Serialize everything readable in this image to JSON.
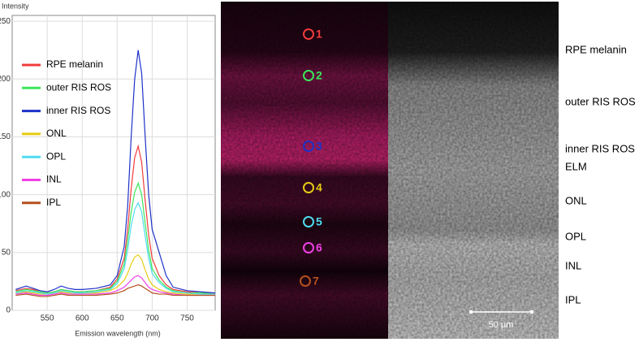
{
  "chart_data": {
    "type": "line",
    "ylabel": "Intensity",
    "xlabel": "Emission wavelength (nm)",
    "x": [
      505,
      520,
      530,
      540,
      550,
      560,
      570,
      580,
      590,
      600,
      620,
      640,
      650,
      660,
      665,
      670,
      675,
      680,
      685,
      690,
      695,
      700,
      710,
      720,
      730,
      750,
      770,
      790
    ],
    "series": [
      {
        "name": "RPE melanin",
        "color": "#f03c3c",
        "values": [
          17,
          19,
          18,
          16,
          15,
          16,
          18,
          17,
          16,
          16,
          17,
          20,
          27,
          45,
          70,
          105,
          132,
          142,
          128,
          95,
          65,
          45,
          30,
          22,
          18,
          16,
          15,
          15
        ]
      },
      {
        "name": "outer RIS ROS",
        "color": "#3ce65a",
        "values": [
          16,
          18,
          17,
          16,
          15,
          16,
          18,
          17,
          16,
          16,
          17,
          19,
          25,
          40,
          60,
          85,
          102,
          110,
          100,
          75,
          52,
          36,
          26,
          20,
          17,
          15,
          15,
          14
        ]
      },
      {
        "name": "inner RIS ROS",
        "color": "#1e32c8",
        "values": [
          18,
          21,
          19,
          17,
          16,
          18,
          21,
          19,
          18,
          18,
          19,
          22,
          30,
          55,
          90,
          150,
          200,
          225,
          205,
          150,
          100,
          70,
          50,
          30,
          20,
          17,
          16,
          15
        ]
      },
      {
        "name": "ONL",
        "color": "#e6cc14",
        "values": [
          15,
          16,
          15,
          14,
          14,
          15,
          16,
          15,
          15,
          15,
          15,
          17,
          20,
          26,
          32,
          40,
          46,
          48,
          44,
          35,
          27,
          22,
          18,
          16,
          15,
          14,
          14,
          14
        ]
      },
      {
        "name": "OPL",
        "color": "#50dcf0",
        "values": [
          15,
          17,
          16,
          15,
          14,
          15,
          17,
          16,
          15,
          15,
          16,
          18,
          23,
          36,
          52,
          73,
          87,
          93,
          85,
          64,
          45,
          32,
          24,
          19,
          16,
          15,
          14,
          14
        ]
      },
      {
        "name": "INL",
        "color": "#f040e6",
        "values": [
          14,
          15,
          14,
          13,
          13,
          14,
          15,
          14,
          14,
          14,
          14,
          15,
          17,
          20,
          23,
          26,
          29,
          30,
          28,
          24,
          20,
          18,
          16,
          15,
          14,
          13,
          13,
          13
        ]
      },
      {
        "name": "IPL",
        "color": "#b4501e",
        "values": [
          13,
          14,
          13,
          12,
          12,
          13,
          14,
          13,
          13,
          13,
          13,
          14,
          15,
          17,
          19,
          20,
          21,
          22,
          21,
          19,
          17,
          15,
          14,
          14,
          13,
          13,
          13,
          13
        ]
      }
    ],
    "xlim": [
      500,
      790
    ],
    "xticks": [
      550,
      600,
      650,
      700,
      750
    ],
    "ylim": [
      0,
      255
    ],
    "yticks": [
      0,
      50,
      100,
      150,
      200,
      250
    ],
    "grid": true,
    "legend": "upper left"
  },
  "image_panel": {
    "markers": [
      "1",
      "2",
      "3",
      "4",
      "5",
      "6",
      "7"
    ],
    "layers": [
      "RPE melanin",
      "outer RIS ROS",
      "inner RIS ROS",
      "ELM",
      "ONL",
      "OPL",
      "INL",
      "IPL"
    ],
    "scale_bar": "50 µm"
  }
}
